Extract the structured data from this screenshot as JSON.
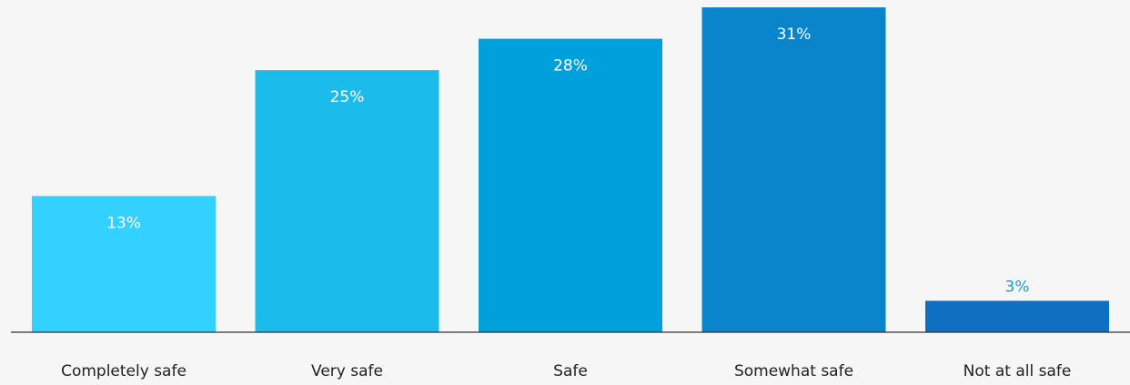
{
  "chart_data": {
    "type": "bar",
    "categories": [
      "Completely safe",
      "Very safe",
      "Safe",
      "Somewhat safe",
      "Not at all safe"
    ],
    "values": [
      13,
      25,
      28,
      31,
      3
    ],
    "value_labels": [
      "13%",
      "25%",
      "28%",
      "31%",
      "3%"
    ],
    "unit": "%",
    "ylim": [
      0,
      31.7
    ],
    "grid": false,
    "legend": "none",
    "colors": [
      "#33d1ff",
      "#1bbbeb",
      "#00a0dc",
      "#0a85cb",
      "#0f6fc0"
    ],
    "label_color_inside": "#ffffff",
    "label_color_outside": "#1a9ad6",
    "baseline_color": "#333333",
    "background": "#f6f6f6"
  }
}
